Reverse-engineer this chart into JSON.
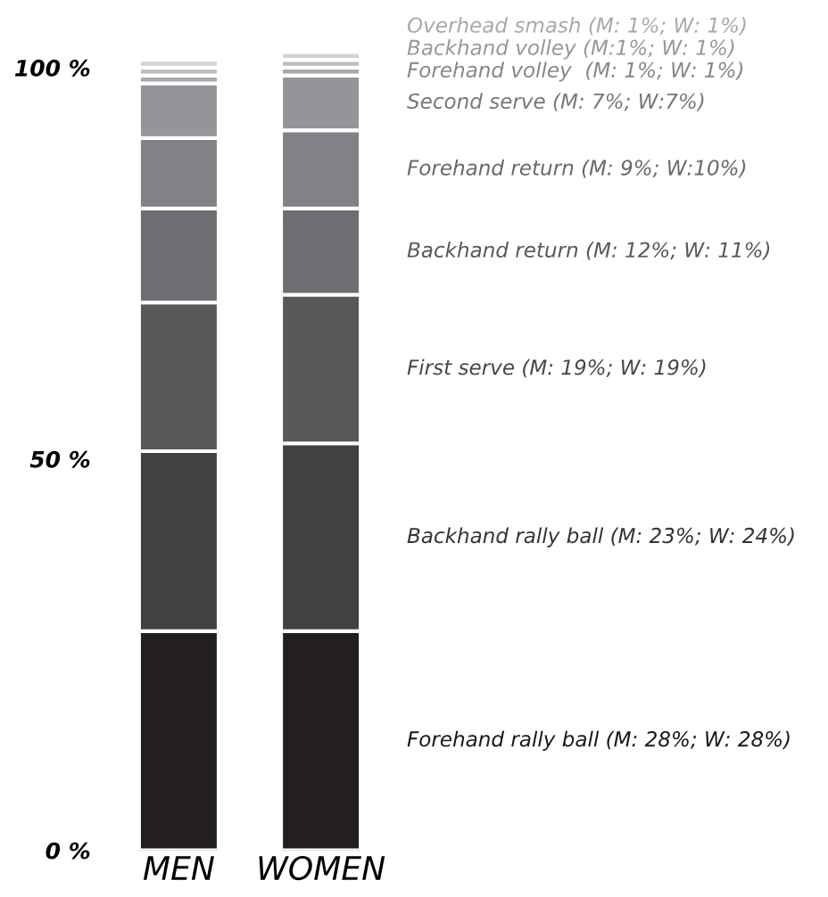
{
  "chart_data": {
    "type": "bar",
    "stacked": true,
    "categories": [
      "MEN",
      "WOMEN"
    ],
    "series": [
      {
        "name": "Forehand rally ball (M: 28%; W: 28%)",
        "color": "#231f20",
        "values": [
          28,
          28
        ]
      },
      {
        "name": "Backhand rally ball (M: 23%; W: 24%)",
        "color": "#414042",
        "values": [
          23,
          24
        ]
      },
      {
        "name": "First serve (M: 19%; W: 19%)",
        "color": "#58595b",
        "values": [
          19,
          19
        ]
      },
      {
        "name": "Backhand return (M: 12%; W: 11%)",
        "color": "#6d6e71",
        "values": [
          12,
          11
        ]
      },
      {
        "name": "Forehand return (M: 9%; W:10%)",
        "color": "#808285",
        "values": [
          9,
          10
        ]
      },
      {
        "name": "Second serve (M: 7%; W:7%)",
        "color": "#939598",
        "values": [
          7,
          7
        ]
      },
      {
        "name": "Forehand volley  (M: 1%; W: 1%)",
        "color": "#a7a9ac",
        "values": [
          1,
          1
        ]
      },
      {
        "name": "Backhand volley (M:1%; W: 1%)",
        "color": "#bcbec0",
        "values": [
          1,
          1
        ]
      },
      {
        "name": "Overhead smash (M: 1%; W: 1%)",
        "color": "#d1d3d4",
        "values": [
          1,
          1
        ]
      }
    ],
    "ylim": [
      0,
      102
    ],
    "yticks": [
      {
        "value": 0,
        "label": "0 %"
      },
      {
        "value": 50,
        "label": "50 %"
      },
      {
        "value": 100,
        "label": "100 %"
      }
    ],
    "grid": false,
    "legend": false
  }
}
